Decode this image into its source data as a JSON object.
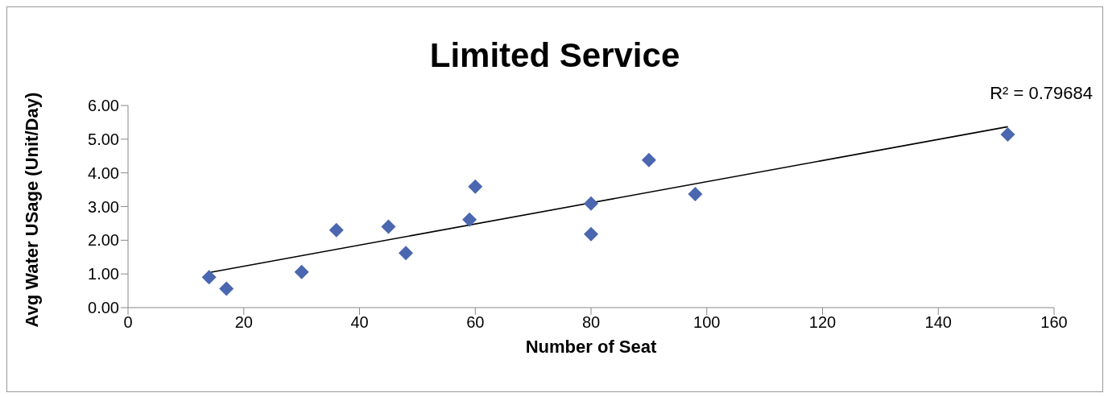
{
  "chart_data": {
    "type": "scatter",
    "title": "Limited Service",
    "xlabel": "Number of Seat",
    "ylabel": "Avg Water USage (Unit/Day)",
    "annotations": [
      "R² = 0.79684"
    ],
    "xlim": [
      0,
      160
    ],
    "xticks": [
      0,
      20,
      40,
      60,
      80,
      100,
      120,
      140,
      160
    ],
    "ylim": [
      0,
      6
    ],
    "yticks": [
      {
        "value": 0,
        "label": "0.00"
      },
      {
        "value": 1,
        "label": "1.00"
      },
      {
        "value": 2,
        "label": "2.00"
      },
      {
        "value": 3,
        "label": "3.00"
      },
      {
        "value": 4,
        "label": "4.00"
      },
      {
        "value": 5,
        "label": "5.00"
      },
      {
        "value": 6,
        "label": "6.00"
      }
    ],
    "grid": false,
    "marker": "diamond",
    "series": [
      {
        "color": "#4a67b0",
        "x": [
          14,
          17,
          30,
          36,
          45,
          48,
          59,
          60,
          80,
          80,
          90,
          98,
          152
        ],
        "values": [
          0.9,
          0.56,
          1.06,
          2.3,
          2.4,
          1.62,
          2.61,
          3.59,
          3.09,
          2.18,
          4.38,
          3.37,
          5.14
        ]
      },
      {
        "type": "line",
        "color": "#000000",
        "marker": "none",
        "line_style": "solid",
        "x": [
          14,
          152
        ],
        "values": [
          1.04,
          5.37
        ]
      }
    ]
  }
}
